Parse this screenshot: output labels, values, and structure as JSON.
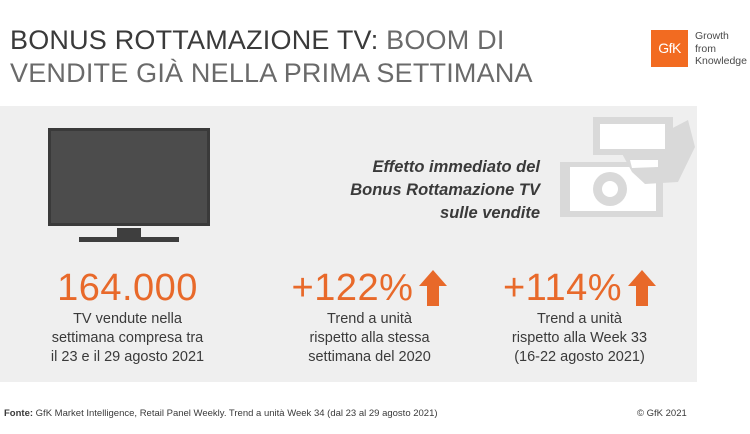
{
  "headline": {
    "bold_part": "BONUS ROTTAMAZIONE TV:",
    "line1_rest": " BOOM DI",
    "line2": "VENDITE GIÀ NELLA PRIMA SETTIMANA"
  },
  "logo": {
    "mark": "GfK",
    "tagline": [
      "Growth",
      "from",
      "Knowledge"
    ],
    "brand_color": "#f26b21"
  },
  "effect_text": [
    "Effetto immediato del",
    "Bonus Rottamazione TV",
    "sulle vendite"
  ],
  "icons": {
    "tv": "tv-icon",
    "money": "money-hand-icon",
    "arrow": "arrow-up-icon"
  },
  "stats": [
    {
      "value": "164.000",
      "desc": [
        "TV vendute nella",
        "settimana compresa tra",
        "il 23 e il 29 agosto 2021"
      ]
    },
    {
      "value": "+122%",
      "desc": [
        "Trend a unità",
        "rispetto alla stessa",
        "settimana del 2020"
      ]
    },
    {
      "value": "+114%",
      "desc": [
        "Trend a unità",
        "rispetto alla Week 33",
        "(16-22 agosto 2021)"
      ]
    }
  ],
  "accent_color": "#e8692a",
  "footer": {
    "label": "Fonte:",
    "text": " GfK Market Intelligence, Retail Panel Weekly. Trend a unità Week 34 (dal 23 al 29 agosto 2021)",
    "copyright": "© GfK 2021"
  }
}
